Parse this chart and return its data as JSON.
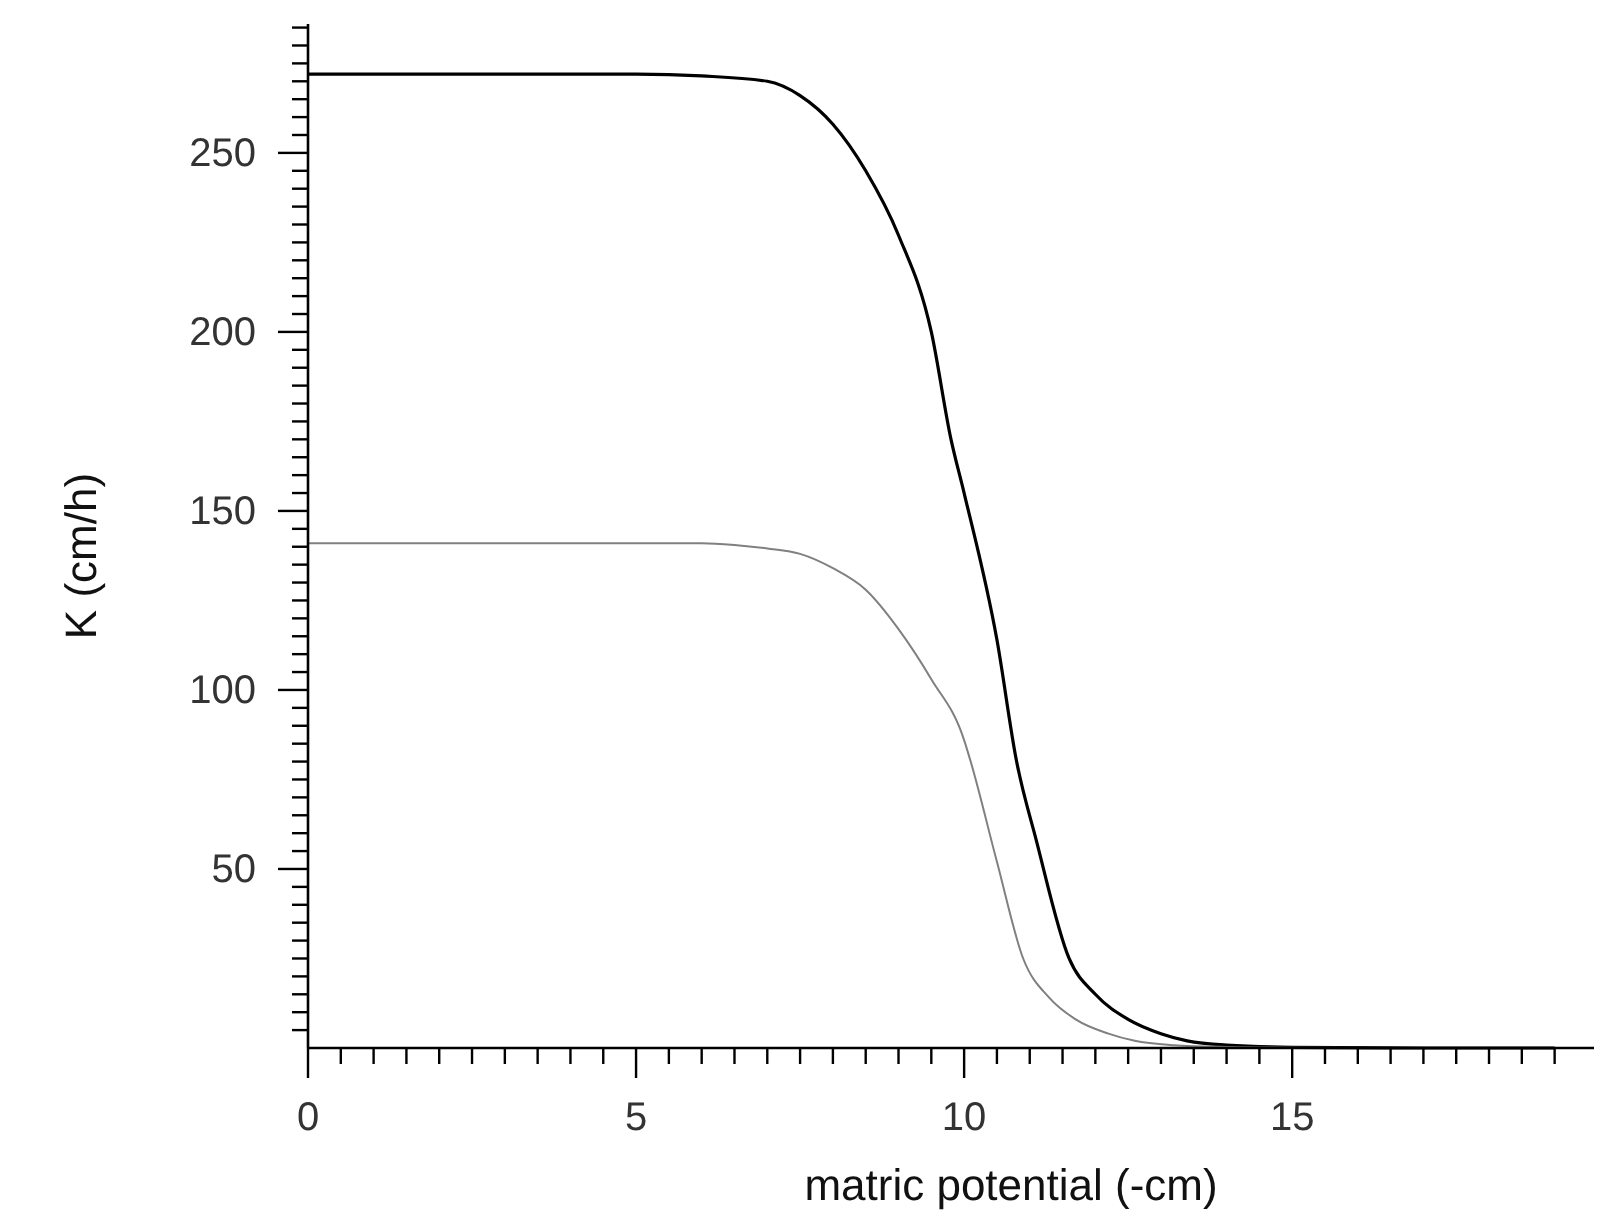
{
  "chart_data": {
    "type": "line",
    "xlabel": "matric potential (-cm)",
    "ylabel": "K (cm/h)",
    "xlim": [
      0,
      19.6
    ],
    "ylim": [
      0,
      286
    ],
    "xticks": [
      0,
      {
        "value": 0.5,
        "label": null
      },
      {
        "value": 1,
        "label": null
      },
      {
        "value": 1.5,
        "label": null
      },
      {
        "value": 2,
        "label": null
      },
      {
        "value": 2.5,
        "label": null
      },
      {
        "value": 3,
        "label": null
      },
      {
        "value": 3.5,
        "label": null
      },
      {
        "value": 4,
        "label": null
      },
      {
        "value": 4.5,
        "label": null
      },
      5,
      {
        "value": 5.5,
        "label": null
      },
      {
        "value": 6,
        "label": null
      },
      {
        "value": 6.5,
        "label": null
      },
      {
        "value": 7,
        "label": null
      },
      {
        "value": 7.5,
        "label": null
      },
      {
        "value": 8,
        "label": null
      },
      {
        "value": 8.5,
        "label": null
      },
      {
        "value": 9,
        "label": null
      },
      {
        "value": 9.5,
        "label": null
      },
      10,
      {
        "value": 10.5,
        "label": null
      },
      {
        "value": 11,
        "label": null
      },
      {
        "value": 11.5,
        "label": null
      },
      {
        "value": 12,
        "label": null
      },
      {
        "value": 12.5,
        "label": null
      },
      {
        "value": 13,
        "label": null
      },
      {
        "value": 13.5,
        "label": null
      },
      {
        "value": 14,
        "label": null
      },
      {
        "value": 14.5,
        "label": null
      },
      15,
      {
        "value": 15.5,
        "label": null
      },
      {
        "value": 16,
        "label": null
      },
      {
        "value": 16.5,
        "label": null
      },
      {
        "value": 17,
        "label": null
      },
      {
        "value": 17.5,
        "label": null
      },
      {
        "value": 18,
        "label": null
      },
      {
        "value": 18.5,
        "label": null
      },
      {
        "value": 19,
        "label": null
      }
    ],
    "yticks": [
      {
        "value": 5,
        "label": null
      },
      {
        "value": 10,
        "label": null
      },
      {
        "value": 15,
        "label": null
      },
      {
        "value": 20,
        "label": null
      },
      {
        "value": 25,
        "label": null
      },
      {
        "value": 30,
        "label": null
      },
      {
        "value": 35,
        "label": null
      },
      {
        "value": 40,
        "label": null
      },
      {
        "value": 45,
        "label": null
      },
      50,
      {
        "value": 55,
        "label": null
      },
      {
        "value": 60,
        "label": null
      },
      {
        "value": 65,
        "label": null
      },
      {
        "value": 70,
        "label": null
      },
      {
        "value": 75,
        "label": null
      },
      {
        "value": 80,
        "label": null
      },
      {
        "value": 85,
        "label": null
      },
      {
        "value": 90,
        "label": null
      },
      {
        "value": 95,
        "label": null
      },
      100,
      {
        "value": 105,
        "label": null
      },
      {
        "value": 110,
        "label": null
      },
      {
        "value": 115,
        "label": null
      },
      {
        "value": 120,
        "label": null
      },
      {
        "value": 125,
        "label": null
      },
      {
        "value": 130,
        "label": null
      },
      {
        "value": 135,
        "label": null
      },
      {
        "value": 140,
        "label": null
      },
      {
        "value": 145,
        "label": null
      },
      150,
      {
        "value": 155,
        "label": null
      },
      {
        "value": 160,
        "label": null
      },
      {
        "value": 165,
        "label": null
      },
      {
        "value": 170,
        "label": null
      },
      {
        "value": 175,
        "label": null
      },
      {
        "value": 180,
        "label": null
      },
      {
        "value": 185,
        "label": null
      },
      {
        "value": 190,
        "label": null
      },
      {
        "value": 195,
        "label": null
      },
      200,
      {
        "value": 205,
        "label": null
      },
      {
        "value": 210,
        "label": null
      },
      {
        "value": 215,
        "label": null
      },
      {
        "value": 220,
        "label": null
      },
      {
        "value": 225,
        "label": null
      },
      {
        "value": 230,
        "label": null
      },
      {
        "value": 235,
        "label": null
      },
      {
        "value": 240,
        "label": null
      },
      {
        "value": 245,
        "label": null
      },
      250,
      {
        "value": 255,
        "label": null
      },
      {
        "value": 260,
        "label": null
      },
      {
        "value": 265,
        "label": null
      },
      {
        "value": 270,
        "label": null
      },
      {
        "value": 275,
        "label": null
      },
      {
        "value": 280,
        "label": null
      },
      {
        "value": 285,
        "label": null
      }
    ],
    "grid": false,
    "legend": false,
    "marker": "none",
    "line_style": "solid",
    "series": [
      {
        "color": "#000000",
        "x": [
          0,
          5,
          6,
          7,
          7.5,
          8,
          8.5,
          9,
          9.5,
          9.8,
          10,
          10.5,
          10.8,
          11.1,
          11.6,
          12,
          12.5,
          13,
          13.4,
          14,
          15,
          17,
          19
        ],
        "values": [
          272,
          272,
          271.5,
          270,
          266,
          258,
          245,
          227,
          200,
          170,
          155,
          114,
          80,
          58,
          25,
          15,
          8,
          4,
          2,
          0.8,
          0.2,
          0,
          0
        ]
      },
      {
        "color": "#808080",
        "x": [
          0,
          5,
          6,
          6.5,
          7,
          7.5,
          8,
          8.5,
          9,
          9.5,
          10,
          10.1,
          10.5,
          10.9,
          11.3,
          11.7,
          12.2,
          12.6,
          13.2,
          14,
          15,
          17,
          19
        ],
        "values": [
          141,
          141,
          141,
          140.5,
          139.5,
          138,
          134,
          128,
          117,
          103,
          86,
          80,
          52,
          25,
          14,
          8,
          4,
          2,
          0.8,
          0.3,
          0.1,
          0,
          0
        ]
      }
    ]
  }
}
